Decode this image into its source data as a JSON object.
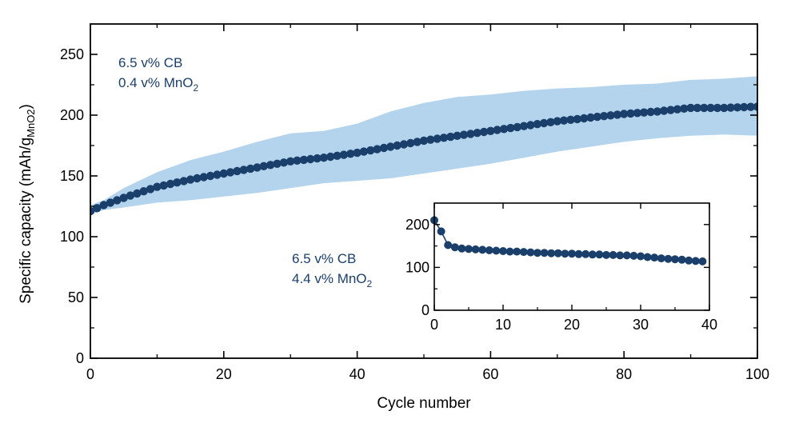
{
  "chart_data": [
    {
      "type": "line",
      "role": "main",
      "xlabel": "Cycle number",
      "ylabel_main": "Specific capacity (mAh/g",
      "ylabel_sub": "MnO2",
      "ylabel_close": ")",
      "xlim": [
        0,
        100
      ],
      "ylim": [
        0,
        275
      ],
      "x_ticks": [
        0,
        20,
        40,
        60,
        80,
        100
      ],
      "y_ticks": [
        0,
        50,
        100,
        150,
        200,
        250
      ],
      "annotations": [
        {
          "id": "top",
          "line1": "6.5 v% CB",
          "line2_main": "0.4 v% MnO",
          "line2_sub": "2"
        },
        {
          "id": "bottom",
          "line1": "6.5 v% CB",
          "line2_main": "4.4 v% MnO",
          "line2_sub": "2"
        }
      ],
      "series": [
        {
          "name": "6.5 v% CB / 0.4 v% MnO2",
          "color": "#1b3f6b",
          "band_color": "#b3d4ec",
          "x": [
            0,
            2,
            5,
            10,
            15,
            20,
            25,
            30,
            35,
            40,
            45,
            50,
            55,
            60,
            65,
            70,
            75,
            80,
            85,
            90,
            95,
            100
          ],
          "values": [
            121,
            126,
            132,
            141,
            147,
            152,
            157,
            162,
            165,
            169,
            174,
            179,
            183,
            187,
            191,
            195,
            198,
            201,
            203,
            206,
            206,
            207
          ],
          "band_upper": [
            126,
            130,
            140,
            153,
            163,
            170,
            178,
            185,
            187,
            193,
            203,
            210,
            215,
            217,
            220,
            222,
            223,
            225,
            226,
            229,
            230,
            232
          ],
          "band_lower": [
            118,
            122,
            124,
            128,
            130,
            133,
            136,
            140,
            144,
            146,
            148,
            152,
            156,
            160,
            165,
            170,
            174,
            178,
            181,
            183,
            184,
            183
          ]
        }
      ]
    },
    {
      "type": "line",
      "role": "inset",
      "xlim": [
        0,
        40
      ],
      "ylim": [
        0,
        250
      ],
      "x_ticks": [
        0,
        10,
        20,
        30,
        40
      ],
      "y_ticks": [
        0,
        100,
        200
      ],
      "series": [
        {
          "name": "6.5 v% CB / 4.4 v% MnO2",
          "color": "#1b3f6b",
          "x": [
            0,
            1,
            2,
            3,
            4,
            5,
            6,
            7,
            8,
            9,
            10,
            11,
            12,
            13,
            14,
            15,
            16,
            17,
            18,
            19,
            20,
            21,
            22,
            23,
            24,
            25,
            26,
            27,
            28,
            29,
            30,
            31,
            32,
            33,
            34,
            35,
            36,
            37,
            38,
            39
          ],
          "values": [
            210,
            184,
            152,
            147,
            144,
            143,
            142,
            141,
            140,
            139,
            138,
            137,
            137,
            136,
            135,
            134,
            134,
            133,
            133,
            132,
            132,
            131,
            131,
            130,
            130,
            129,
            129,
            128,
            128,
            127,
            126,
            124,
            123,
            121,
            120,
            119,
            118,
            116,
            115,
            114
          ]
        }
      ]
    }
  ]
}
